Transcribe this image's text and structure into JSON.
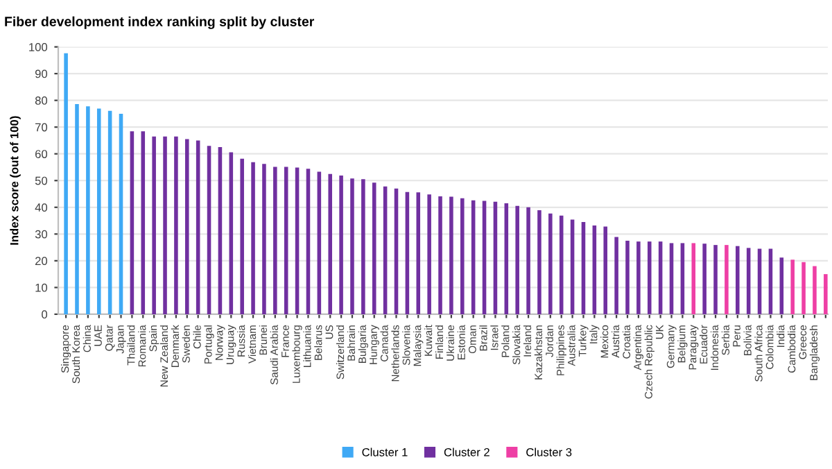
{
  "chart_data": {
    "type": "bar",
    "title": "Fiber development index ranking split by cluster",
    "ylabel": "Index score (out of 100)",
    "categories": [
      "Singapore",
      "South Korea",
      "China",
      "UAE",
      "Qatar",
      "Japan",
      "Thailand",
      "Romania",
      "Spain",
      "New Zealand",
      "Denmark",
      "Sweden",
      "Chile",
      "Portugal",
      "Norway",
      "Uruguay",
      "Russia",
      "Vietnam",
      "Brunei",
      "Saudi Arabia",
      "France",
      "Luxembourg",
      "Lithuania",
      "Belarus",
      "US",
      "Switzerland",
      "Bahrain",
      "Bulgaria",
      "Hungary",
      "Canada",
      "Netherlands",
      "Slovenia",
      "Malaysia",
      "Kuwait",
      "Finland",
      "Ukraine",
      "Estonia",
      "Oman",
      "Brazil",
      "Israel",
      "Poland",
      "Slovakia",
      "Ireland",
      "Kazakhstan",
      "Jordan",
      "Philippines",
      "Australia",
      "Turkey",
      "Italy",
      "Mexico",
      "Austria",
      "Croatia",
      "Argentina",
      "Czech Republic",
      "UK",
      "Germany",
      "Belgium",
      "Paraguay",
      "Ecuador",
      "Indonesia",
      "Serbia",
      "Peru",
      "Bolivia",
      "South Africa",
      "Colombia",
      "India",
      "Cambodia",
      "Greece",
      "Bangladesh",
      null
    ],
    "series": [
      {
        "name": "Cluster 1",
        "color": "#3fa9f5",
        "values": [
          97.6,
          78.6,
          77.8,
          76.9,
          76.1,
          75.0,
          null,
          null,
          null,
          null,
          null,
          null,
          null,
          null,
          null,
          null,
          null,
          null,
          null,
          null,
          null,
          null,
          null,
          null,
          null,
          null,
          null,
          null,
          null,
          null,
          null,
          null,
          null,
          null,
          null,
          null,
          null,
          null,
          null,
          null,
          null,
          null,
          null,
          null,
          null,
          null,
          null,
          null,
          null,
          null,
          null,
          null,
          null,
          null,
          null,
          null,
          null,
          null,
          null,
          null,
          null,
          null,
          null,
          null,
          null,
          null,
          null,
          null,
          null,
          null
        ]
      },
      {
        "name": "Cluster 2",
        "color": "#7030a0",
        "values": [
          null,
          null,
          null,
          null,
          null,
          null,
          68.4,
          68.4,
          66.5,
          66.5,
          66.5,
          65.5,
          65.0,
          63.0,
          62.5,
          60.6,
          58.2,
          56.9,
          56.2,
          55.1,
          55.1,
          54.9,
          54.4,
          53.3,
          52.5,
          51.9,
          50.8,
          50.5,
          49.2,
          47.8,
          47.0,
          45.7,
          45.6,
          44.8,
          44.1,
          44.0,
          43.4,
          42.6,
          42.4,
          42.1,
          41.5,
          40.5,
          40.0,
          38.9,
          37.7,
          36.9,
          35.4,
          34.5,
          33.2,
          32.8,
          28.9,
          27.5,
          27.2,
          27.2,
          27.2,
          26.6,
          26.6,
          null,
          26.4,
          25.9,
          null,
          25.5,
          24.8,
          24.5,
          24.5,
          21.2,
          null,
          null,
          null,
          null
        ]
      },
      {
        "name": "Cluster 3",
        "color": "#ee3fa5",
        "values": [
          null,
          null,
          null,
          null,
          null,
          null,
          null,
          null,
          null,
          null,
          null,
          null,
          null,
          null,
          null,
          null,
          null,
          null,
          null,
          null,
          null,
          null,
          null,
          null,
          null,
          null,
          null,
          null,
          null,
          null,
          null,
          null,
          null,
          null,
          null,
          null,
          null,
          null,
          null,
          null,
          null,
          null,
          null,
          null,
          null,
          null,
          null,
          null,
          null,
          null,
          null,
          null,
          null,
          null,
          null,
          null,
          null,
          26.6,
          null,
          null,
          25.9,
          null,
          null,
          null,
          null,
          null,
          20.4,
          19.5,
          18.0,
          15.0
        ]
      }
    ],
    "ylim": [
      0,
      100
    ],
    "yticks": [
      0,
      10,
      20,
      30,
      40,
      50,
      60,
      70,
      80,
      90,
      100
    ],
    "grid": "y",
    "legend": "bottom"
  }
}
